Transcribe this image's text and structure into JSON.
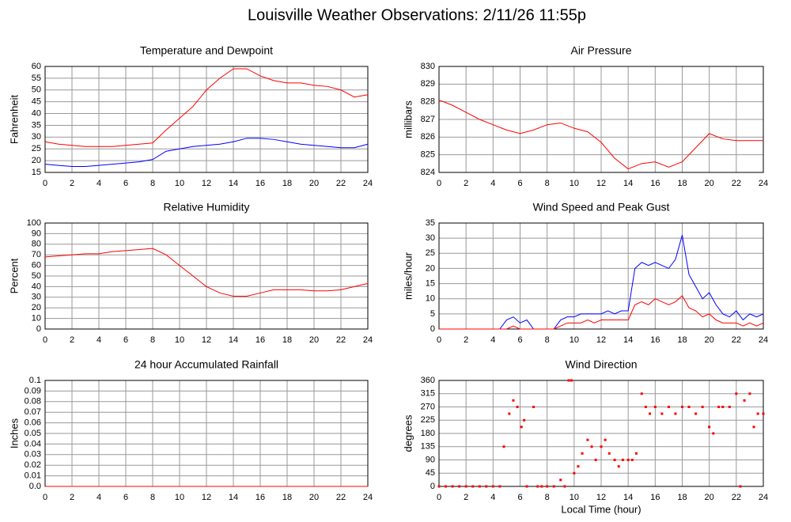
{
  "title": "Louisville Weather Observations: 2/11/26 11:55p",
  "chart_data": [
    {
      "type": "line",
      "title": "Temperature and Dewpoint",
      "ylabel": "Fahrenheit",
      "x": [
        0,
        1,
        2,
        3,
        4,
        5,
        6,
        7,
        8,
        9,
        10,
        11,
        12,
        13,
        14,
        15,
        16,
        17,
        18,
        19,
        20,
        21,
        22,
        23,
        24
      ],
      "series": [
        {
          "color": "#ff0000",
          "values": [
            28,
            27,
            26.5,
            26,
            26,
            26,
            26.5,
            27,
            27.5,
            33,
            38,
            43,
            50,
            55,
            59,
            59,
            56,
            54,
            53,
            53,
            52,
            51.5,
            50,
            47,
            48
          ]
        },
        {
          "color": "#0000ff",
          "values": [
            18.5,
            18,
            17.5,
            17.5,
            18,
            18.5,
            19,
            19.5,
            20.5,
            24,
            25,
            26,
            26.5,
            27,
            28,
            29.5,
            29.5,
            29,
            28,
            27,
            26.5,
            26,
            25.5,
            25.5,
            27
          ]
        }
      ],
      "xlim": [
        0,
        24
      ],
      "xticks": [
        0,
        2,
        4,
        6,
        8,
        10,
        12,
        14,
        16,
        18,
        20,
        22,
        24
      ],
      "ylim": [
        15,
        60
      ],
      "yticks": [
        15,
        20,
        25,
        30,
        35,
        40,
        45,
        50,
        55,
        60
      ],
      "grid": true
    },
    {
      "type": "line",
      "title": "Air Pressure",
      "ylabel": "millibars",
      "x": [
        0,
        1,
        2,
        3,
        4,
        5,
        6,
        7,
        8,
        9,
        10,
        11,
        12,
        13,
        14,
        15,
        16,
        17,
        18,
        19,
        20,
        21,
        22,
        23,
        24
      ],
      "series": [
        {
          "color": "#ff0000",
          "values": [
            828.1,
            827.8,
            827.4,
            827.0,
            826.7,
            826.4,
            826.2,
            826.4,
            826.7,
            826.8,
            826.5,
            826.3,
            825.7,
            824.8,
            824.2,
            824.5,
            824.6,
            824.3,
            824.6,
            825.4,
            826.2,
            825.9,
            825.8,
            825.8,
            825.8
          ]
        }
      ],
      "xlim": [
        0,
        24
      ],
      "xticks": [
        0,
        2,
        4,
        6,
        8,
        10,
        12,
        14,
        16,
        18,
        20,
        22,
        24
      ],
      "ylim": [
        824,
        830
      ],
      "yticks": [
        824,
        825,
        826,
        827,
        828,
        829,
        830
      ],
      "grid": true
    },
    {
      "type": "line",
      "title": "Relative Humidity",
      "ylabel": "Percent",
      "x": [
        0,
        1,
        2,
        3,
        4,
        5,
        6,
        7,
        8,
        9,
        10,
        11,
        12,
        13,
        14,
        15,
        16,
        17,
        18,
        19,
        20,
        21,
        22,
        23,
        24
      ],
      "series": [
        {
          "color": "#ff0000",
          "values": [
            68,
            69,
            70,
            71,
            71,
            73,
            74,
            75,
            76,
            70,
            60,
            50,
            40,
            34,
            31,
            31,
            34,
            37,
            37,
            37,
            36,
            36,
            37,
            40,
            43
          ]
        }
      ],
      "xlim": [
        0,
        24
      ],
      "xticks": [
        0,
        2,
        4,
        6,
        8,
        10,
        12,
        14,
        16,
        18,
        20,
        22,
        24
      ],
      "ylim": [
        0,
        100
      ],
      "yticks": [
        0,
        10,
        20,
        30,
        40,
        50,
        60,
        70,
        80,
        90,
        100
      ],
      "grid": true
    },
    {
      "type": "line",
      "title": "Wind Speed and Peak Gust",
      "ylabel": "miles/hour",
      "x": [
        0,
        0.5,
        1,
        1.5,
        2,
        2.5,
        3,
        3.5,
        4,
        4.5,
        5,
        5.5,
        6,
        6.5,
        7,
        7.5,
        8,
        8.5,
        9,
        9.5,
        10,
        10.5,
        11,
        11.5,
        12,
        12.5,
        13,
        13.5,
        14,
        14.5,
        15,
        15.5,
        16,
        16.5,
        17,
        17.5,
        18,
        18.5,
        19,
        19.5,
        20,
        20.5,
        21,
        21.5,
        22,
        22.5,
        23,
        23.5,
        24
      ],
      "series": [
        {
          "color": "#0000ff",
          "values": [
            0,
            0,
            0,
            0,
            0,
            0,
            0,
            0,
            0,
            0,
            3,
            4,
            2,
            3,
            0,
            0,
            0,
            0,
            3,
            4,
            4,
            5,
            5,
            5,
            5,
            6,
            5,
            6,
            6,
            20,
            22,
            21,
            22,
            21,
            20,
            23,
            31,
            18,
            14,
            10,
            12,
            8,
            5,
            4,
            6,
            3,
            5,
            4,
            5
          ]
        },
        {
          "color": "#ff0000",
          "values": [
            0,
            0,
            0,
            0,
            0,
            0,
            0,
            0,
            0,
            0,
            0,
            1,
            0,
            0,
            0,
            0,
            0,
            0,
            1,
            2,
            2,
            2,
            3,
            2,
            3,
            3,
            3,
            3,
            3,
            8,
            9,
            8,
            10,
            9,
            8,
            9,
            11,
            7,
            6,
            4,
            5,
            3,
            2,
            2,
            2,
            1,
            2,
            1,
            2
          ]
        }
      ],
      "xlim": [
        0,
        24
      ],
      "xticks": [
        0,
        2,
        4,
        6,
        8,
        10,
        12,
        14,
        16,
        18,
        20,
        22,
        24
      ],
      "ylim": [
        0,
        35
      ],
      "yticks": [
        0,
        5,
        10,
        15,
        20,
        25,
        30,
        35
      ],
      "grid": true
    },
    {
      "type": "line",
      "title": "24 hour Accumulated Rainfall",
      "ylabel": "Inches",
      "x": [
        0,
        24
      ],
      "series": [
        {
          "color": "#ff0000",
          "values": [
            0,
            0
          ]
        }
      ],
      "xlim": [
        0,
        24
      ],
      "xticks": [
        0,
        2,
        4,
        6,
        8,
        10,
        12,
        14,
        16,
        18,
        20,
        22,
        24
      ],
      "ylim": [
        0,
        0.1
      ],
      "yticks": [
        {
          "value": 0,
          "label": "0.0"
        },
        0.01,
        0.02,
        0.03,
        0.04,
        0.05,
        0.06,
        0.07,
        0.08,
        0.09,
        0.1
      ],
      "grid": true
    },
    {
      "type": "scatter",
      "title": "Wind Direction",
      "ylabel": "degrees",
      "xlabel": "Local Time (hour)",
      "x": [
        0,
        0.5,
        1,
        1.5,
        2,
        2.5,
        3,
        3.5,
        4,
        4.5,
        4.8,
        5.2,
        5.5,
        5.8,
        6.1,
        6.3,
        6.5,
        7,
        7.3,
        7.6,
        8,
        8.5,
        9,
        9.3,
        9.6,
        9.8,
        10,
        10.3,
        10.6,
        11,
        11.3,
        11.6,
        12,
        12.3,
        12.6,
        13,
        13.3,
        13.6,
        14,
        14.3,
        14.6,
        15,
        15.3,
        15.6,
        16,
        16.5,
        17,
        17.5,
        18,
        18.5,
        19,
        19.5,
        20,
        20.3,
        20.7,
        21,
        21.5,
        22,
        22.3,
        22.6,
        23,
        23.3,
        23.6,
        24
      ],
      "series": [
        {
          "color": "#ff0000",
          "values": [
            0,
            0,
            0,
            0,
            0,
            0,
            0,
            0,
            0,
            0,
            135,
            247,
            292,
            270,
            202,
            225,
            0,
            270,
            0,
            0,
            0,
            0,
            22,
            0,
            360,
            360,
            45,
            68,
            112,
            158,
            135,
            90,
            135,
            158,
            112,
            90,
            68,
            90,
            90,
            90,
            112,
            315,
            270,
            247,
            270,
            247,
            270,
            247,
            270,
            270,
            247,
            270,
            202,
            180,
            270,
            270,
            270,
            315,
            0,
            292,
            315,
            202,
            247,
            247
          ]
        }
      ],
      "xlim": [
        0,
        24
      ],
      "xticks": [
        0,
        2,
        4,
        6,
        8,
        10,
        12,
        14,
        16,
        18,
        20,
        22,
        24
      ],
      "ylim": [
        0,
        360
      ],
      "yticks": [
        0,
        45,
        90,
        135,
        180,
        225,
        270,
        315,
        360
      ],
      "grid": true
    }
  ]
}
